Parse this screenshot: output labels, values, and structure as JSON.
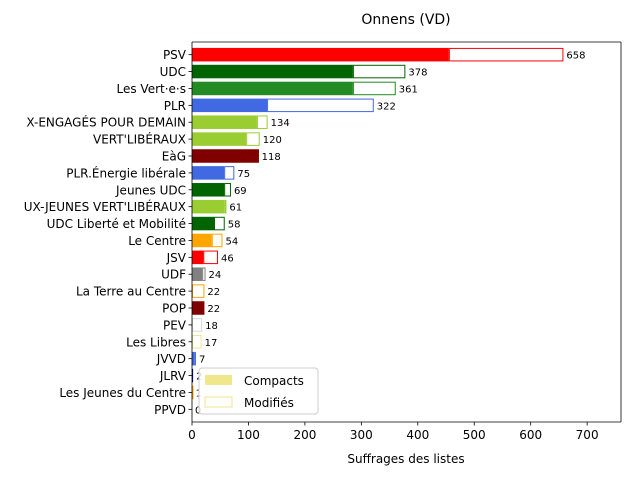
{
  "chart_data": {
    "type": "bar",
    "orientation": "horizontal",
    "stacked": true,
    "title": "Onnens (VD)",
    "xlabel": "Suffrages des listes",
    "ylabel": "",
    "xlim": [
      0,
      760
    ],
    "x_ticks": [
      0,
      100,
      200,
      300,
      400,
      500,
      600,
      700
    ],
    "grid": false,
    "legend_position": "bottom-left",
    "categories": [
      "PSV",
      "UDC",
      "Les Vert·e·s",
      "PLR",
      "X-ENGAGÉS POUR DEMAIN",
      "VERT'LIBÉRAUX",
      "EàG",
      "PLR.Énergie libérale",
      "Jeunes UDC",
      "UX-JEUNES VERT'LIBÉRAUX",
      "UDC Liberté et Mobilité",
      "Le Centre",
      "JSV",
      "UDF",
      "La Terre au Centre",
      "POP",
      "PEV",
      "Les Libres",
      "JVVD",
      "JLRV",
      "Les Jeunes du Centre",
      "PPVD"
    ],
    "colors": [
      "#ff0000",
      "#006400",
      "#228b22",
      "#4169e1",
      "#9acd32",
      "#9acd32",
      "#800000",
      "#4169e1",
      "#006400",
      "#9acd32",
      "#006400",
      "#ffa500",
      "#ff0000",
      "#808080",
      "#ffa500",
      "#800000",
      "#d8d8d8",
      "#f0e68c",
      "#4169e1",
      "#00008b",
      "#ffa500",
      "#f0e68c"
    ],
    "series": [
      {
        "name": "Compacts",
        "values": [
          455,
          285,
          285,
          133,
          115,
          96,
          116,
          57,
          57,
          58,
          39,
          35,
          20,
          18,
          0,
          22,
          0,
          0,
          4,
          2,
          0,
          0
        ]
      },
      {
        "name": "Modifiés",
        "values": [
          203,
          93,
          76,
          189,
          19,
          24,
          2,
          18,
          12,
          3,
          19,
          19,
          26,
          6,
          22,
          0,
          18,
          17,
          3,
          0,
          1,
          0
        ]
      }
    ],
    "totals": [
      "658",
      "378",
      "361",
      "322",
      "134",
      "120",
      "118",
      "75",
      "69",
      "61",
      "58",
      "54",
      "46",
      "24",
      "22",
      "22",
      "18",
      "17",
      "7",
      "2",
      "1",
      "0"
    ],
    "legend_swatches": {
      "Compacts": "#f0e68c",
      "Modifiés": "#f0e68c"
    }
  }
}
